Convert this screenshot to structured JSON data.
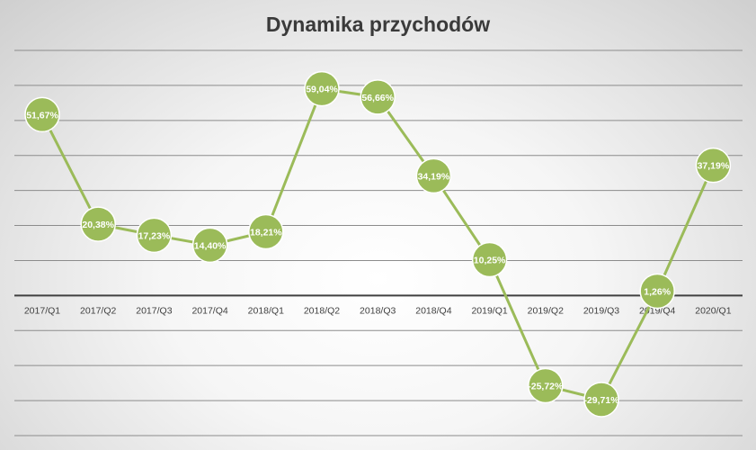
{
  "chart_data": {
    "type": "line",
    "title": "Dynamika przychodów",
    "categories": [
      "2017/Q1",
      "2017/Q2",
      "2017/Q3",
      "2017/Q4",
      "2018/Q1",
      "2018/Q2",
      "2018/Q3",
      "2018/Q4",
      "2019/Q1",
      "2019/Q2",
      "2019/Q3",
      "2019/Q4",
      "2020/Q1"
    ],
    "series": [
      {
        "values": [
          51.67,
          20.38,
          17.23,
          14.4,
          18.21,
          59.04,
          56.66,
          34.19,
          10.25,
          -25.72,
          -29.71,
          1.26,
          37.19
        ],
        "labels": [
          "51,67%",
          "20,38%",
          "17,23%",
          "14,40%",
          "18,21%",
          "59,04%",
          "56,66%",
          "34,19%",
          "10,25%",
          "-25,72%",
          "-29,71%",
          "1,26%",
          "37,19%"
        ]
      }
    ],
    "ylim": [
      -40,
      70
    ],
    "y_gridlines": [
      -40,
      -30,
      -20,
      -10,
      0,
      10,
      20,
      30,
      40,
      50,
      60,
      70
    ],
    "y_axis_labels_shown": false,
    "grid": true,
    "legend": "none",
    "colors": {
      "line": "#9bbb59",
      "marker_fill": "#9bbb59",
      "marker_edge": "#ffffff",
      "gridline": "#8c8c8c",
      "zero_axis": "#404040"
    }
  }
}
